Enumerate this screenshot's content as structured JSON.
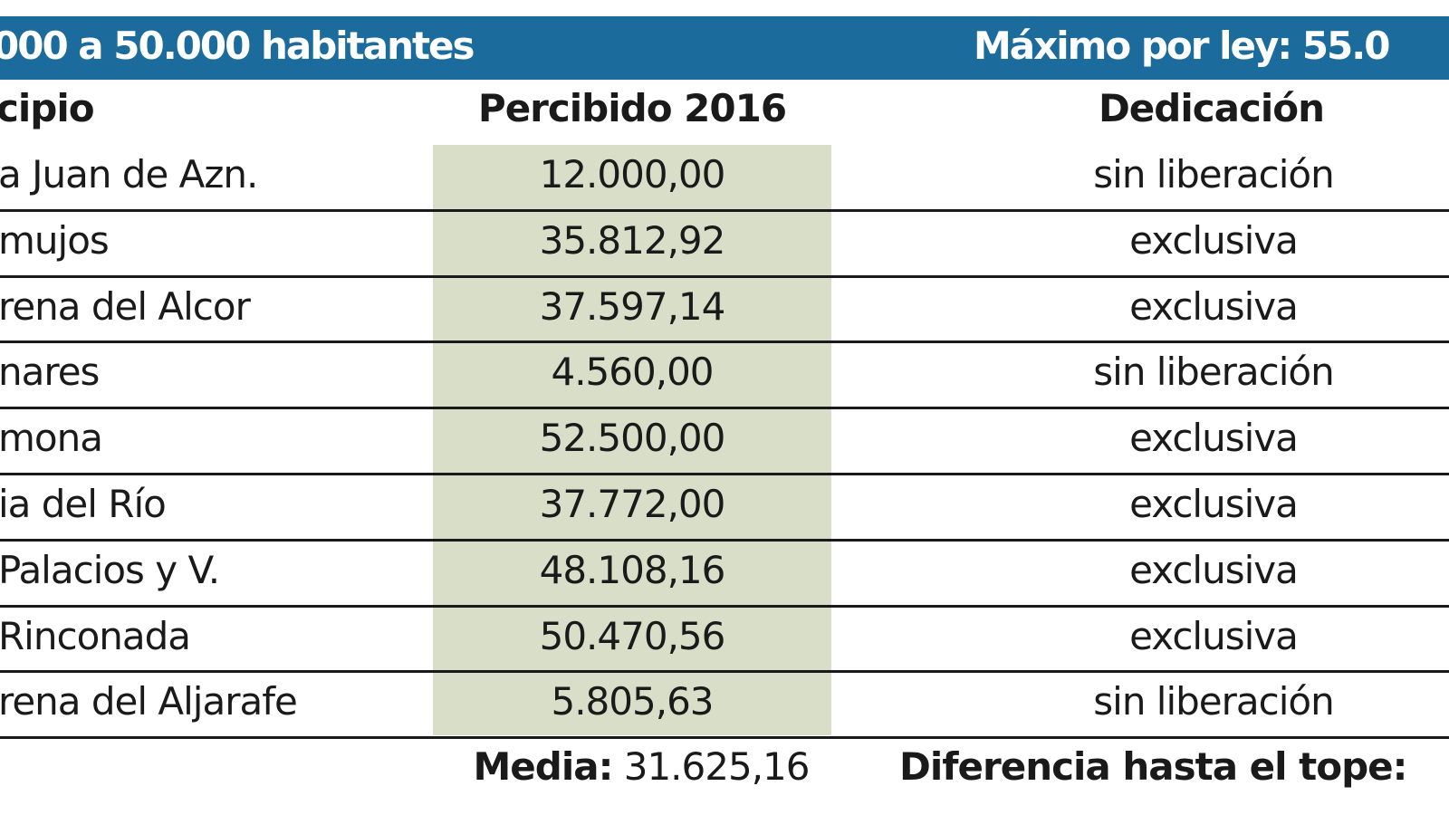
{
  "banner": {
    "left": "000 a 50.000 habitantes",
    "right": "Máximo por ley: 55.0"
  },
  "table": {
    "headers": [
      "cipio",
      "Percibido 2016",
      "Dedicación"
    ],
    "rows": [
      [
        "a Juan de Azn.",
        "12.000,00",
        "sin liberación"
      ],
      [
        "mujos",
        "35.812,92",
        "exclusiva"
      ],
      [
        "rena del Alcor",
        "37.597,14",
        "exclusiva"
      ],
      [
        "nares",
        "4.560,00",
        "sin liberación"
      ],
      [
        "mona",
        "52.500,00",
        "exclusiva"
      ],
      [
        "ia del Río",
        "37.772,00",
        "exclusiva"
      ],
      [
        "Palacios y V.",
        "48.108,16",
        "exclusiva"
      ],
      [
        "Rinconada",
        "50.470,56",
        "exclusiva"
      ],
      [
        "rena del Aljarafe",
        "5.805,63",
        "sin liberación"
      ]
    ]
  },
  "footer": {
    "mean_label": "Media:",
    "mean_value": "31.625,16",
    "difference_label": "Diferencia hasta el tope:"
  }
}
